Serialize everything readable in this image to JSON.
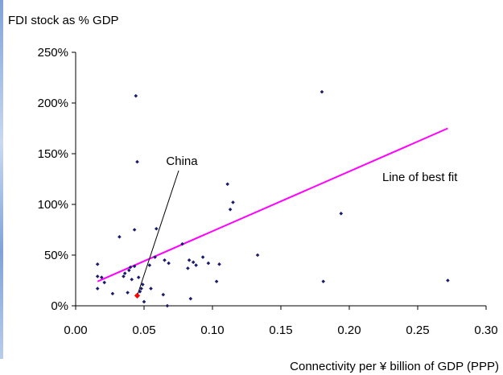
{
  "chart_data": {
    "type": "scatter",
    "title": "",
    "ylabel": "FDI stock as % GDP",
    "xlabel": "Connectivity per ¥ billion of GDP (PPP)",
    "xlim": [
      0.0,
      0.3
    ],
    "ylim": [
      0,
      2.5
    ],
    "x_ticks": [
      0.0,
      0.05,
      0.1,
      0.15,
      0.2,
      0.25,
      0.3
    ],
    "x_tick_labels": [
      "0.00",
      "0.05",
      "0.10",
      "0.15",
      "0.20",
      "0.25",
      "0.30"
    ],
    "y_ticks": [
      0,
      0.5,
      1.0,
      1.5,
      2.0,
      2.5
    ],
    "y_tick_labels": [
      "0%",
      "50%",
      "100%",
      "150%",
      "200%",
      "250%"
    ],
    "grid": false,
    "series": [
      {
        "color": "#1a1a6e",
        "points": [
          [
            0.016,
            0.41
          ],
          [
            0.016,
            0.29
          ],
          [
            0.016,
            0.17
          ],
          [
            0.019,
            0.28
          ],
          [
            0.021,
            0.23
          ],
          [
            0.027,
            0.12
          ],
          [
            0.032,
            0.68
          ],
          [
            0.035,
            0.29
          ],
          [
            0.036,
            0.32
          ],
          [
            0.038,
            0.13
          ],
          [
            0.039,
            0.35
          ],
          [
            0.04,
            0.38
          ],
          [
            0.041,
            0.26
          ],
          [
            0.043,
            0.39
          ],
          [
            0.043,
            0.75
          ],
          [
            0.044,
            2.07
          ],
          [
            0.045,
            1.42
          ],
          [
            0.046,
            0.28
          ],
          [
            0.047,
            0.14
          ],
          [
            0.048,
            0.17
          ],
          [
            0.049,
            0.21
          ],
          [
            0.05,
            0.04
          ],
          [
            0.054,
            0.4
          ],
          [
            0.055,
            0.17
          ],
          [
            0.058,
            0.48
          ],
          [
            0.059,
            0.76
          ],
          [
            0.064,
            0.11
          ],
          [
            0.065,
            0.45
          ],
          [
            0.067,
            0.0
          ],
          [
            0.068,
            0.42
          ],
          [
            0.078,
            0.61
          ],
          [
            0.082,
            0.37
          ],
          [
            0.083,
            0.45
          ],
          [
            0.084,
            0.07
          ],
          [
            0.086,
            0.43
          ],
          [
            0.088,
            0.4
          ],
          [
            0.093,
            0.48
          ],
          [
            0.097,
            0.42
          ],
          [
            0.103,
            0.24
          ],
          [
            0.105,
            0.41
          ],
          [
            0.111,
            1.2
          ],
          [
            0.113,
            0.95
          ],
          [
            0.115,
            1.02
          ],
          [
            0.133,
            0.5
          ],
          [
            0.18,
            2.11
          ],
          [
            0.181,
            0.24
          ],
          [
            0.194,
            0.91
          ],
          [
            0.272,
            0.25
          ]
        ]
      },
      {
        "name": "China",
        "color": "#ff0000",
        "points": [
          [
            0.045,
            0.1
          ]
        ]
      }
    ],
    "best_fit": {
      "label": "Line of best fit",
      "color": "#ff00ff",
      "from": [
        0.016,
        0.24
      ],
      "to": [
        0.272,
        1.75
      ]
    },
    "annotations": [
      {
        "text": "China",
        "points_to": [
          0.045,
          0.1
        ]
      },
      {
        "text": "Line of best fit"
      }
    ]
  }
}
